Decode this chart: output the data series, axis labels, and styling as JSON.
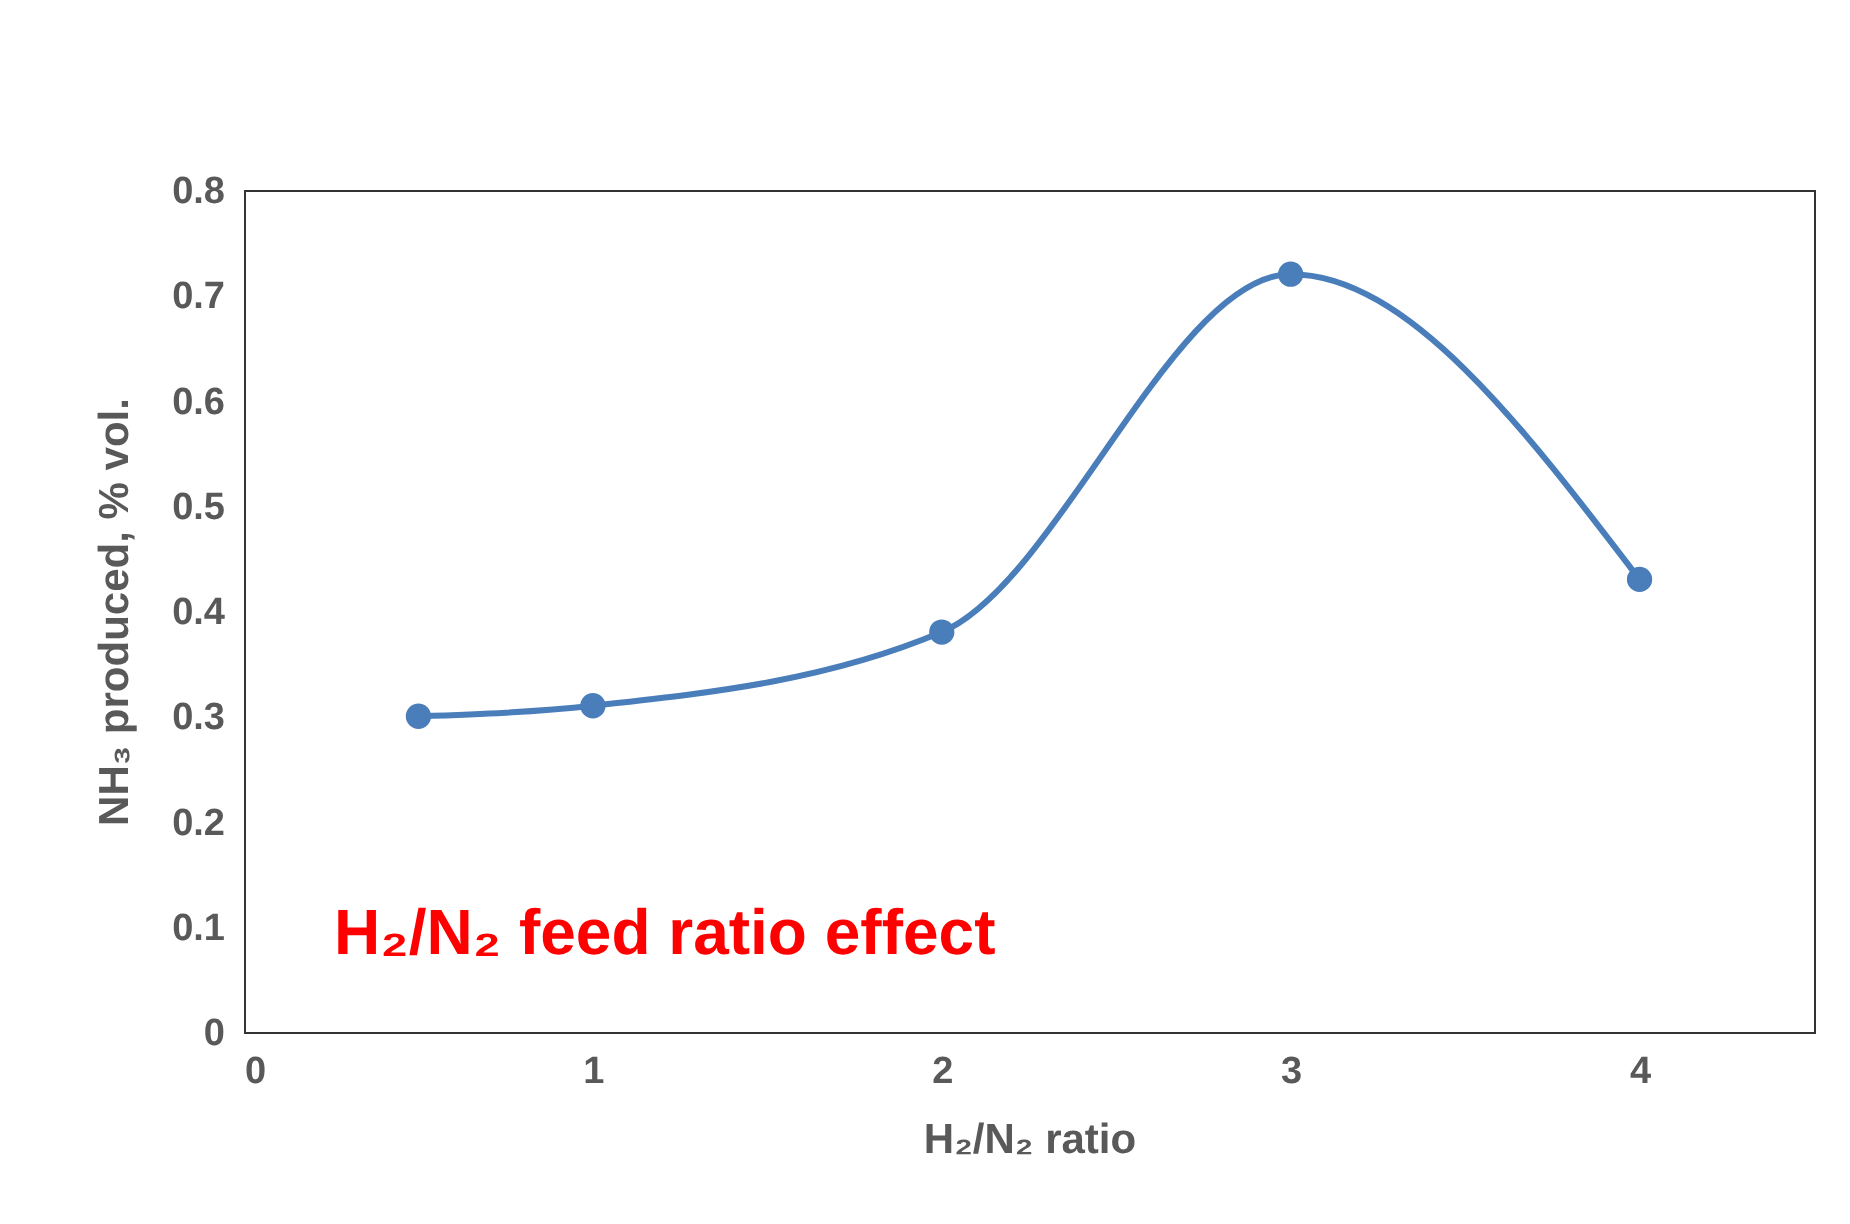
{
  "chart_data": {
    "type": "line",
    "x": [
      0.5,
      1,
      2,
      3,
      4
    ],
    "series": [
      {
        "color": "#4a7ebb",
        "values": [
          0.3,
          0.31,
          0.38,
          0.72,
          0.43
        ]
      }
    ],
    "xlim": [
      0,
      4.5
    ],
    "xticks": [
      0,
      1,
      2,
      3,
      4
    ],
    "ylim": [
      0,
      0.8
    ],
    "yticks": [
      0,
      0.1,
      0.2,
      0.3,
      0.4,
      0.5,
      0.6,
      0.7,
      0.8
    ],
    "xlabel": "H₂/N₂ ratio",
    "ylabel": "NH₃ produced, % vol.",
    "marker": "circle",
    "annotations": [
      "H₂/N₂ feed ratio effect"
    ]
  }
}
